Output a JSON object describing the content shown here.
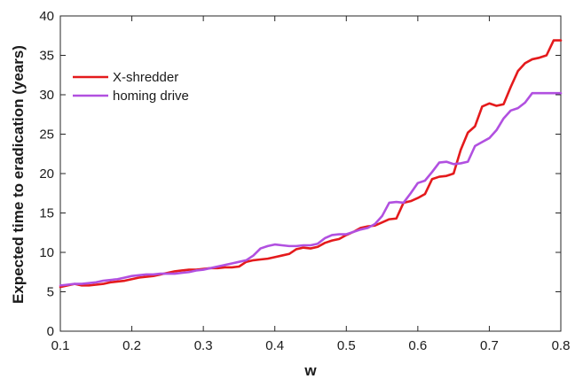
{
  "chart_data": {
    "type": "line",
    "title": "",
    "xlabel": "w",
    "ylabel": "Expected time to eradication (years)",
    "xlim": [
      0.1,
      0.8
    ],
    "ylim": [
      0,
      40
    ],
    "xticks": [
      0.1,
      0.2,
      0.3,
      0.4,
      0.5,
      0.6,
      0.7,
      0.8
    ],
    "yticks": [
      0,
      5,
      10,
      15,
      20,
      25,
      30,
      35,
      40
    ],
    "xtick_labels": [
      "0.1",
      "0.2",
      "0.3",
      "0.4",
      "0.5",
      "0.6",
      "0.7",
      "0.8"
    ],
    "ytick_labels": [
      "0",
      "5",
      "10",
      "15",
      "20",
      "25",
      "30",
      "35",
      "40"
    ],
    "grid": false,
    "legend_position": "top-left",
    "series": [
      {
        "name": "X-shredder",
        "color": "#e41a1c",
        "x": [
          0.1,
          0.11,
          0.12,
          0.13,
          0.14,
          0.15,
          0.16,
          0.17,
          0.18,
          0.19,
          0.2,
          0.21,
          0.22,
          0.23,
          0.24,
          0.25,
          0.26,
          0.27,
          0.28,
          0.29,
          0.3,
          0.31,
          0.32,
          0.33,
          0.34,
          0.35,
          0.36,
          0.37,
          0.38,
          0.39,
          0.4,
          0.41,
          0.42,
          0.43,
          0.44,
          0.45,
          0.46,
          0.47,
          0.48,
          0.49,
          0.5,
          0.51,
          0.52,
          0.53,
          0.54,
          0.55,
          0.56,
          0.57,
          0.58,
          0.59,
          0.6,
          0.61,
          0.62,
          0.63,
          0.64,
          0.65,
          0.66,
          0.67,
          0.68,
          0.69,
          0.7,
          0.71,
          0.72,
          0.73,
          0.74,
          0.75,
          0.76,
          0.77,
          0.78,
          0.79,
          0.8
        ],
        "y": [
          5.6,
          5.8,
          6.0,
          5.8,
          5.8,
          5.9,
          6.0,
          6.2,
          6.3,
          6.4,
          6.6,
          6.8,
          6.9,
          7.0,
          7.2,
          7.4,
          7.6,
          7.7,
          7.8,
          7.8,
          7.9,
          8.0,
          8.0,
          8.1,
          8.1,
          8.2,
          8.8,
          9.0,
          9.1,
          9.2,
          9.4,
          9.6,
          9.8,
          10.4,
          10.6,
          10.5,
          10.7,
          11.2,
          11.5,
          11.7,
          12.2,
          12.6,
          13.1,
          13.3,
          13.4,
          13.8,
          14.2,
          14.3,
          16.3,
          16.5,
          16.9,
          17.4,
          19.3,
          19.6,
          19.7,
          20.0,
          23.0,
          25.2,
          26.0,
          28.5,
          28.9,
          28.6,
          28.8,
          31.0,
          33.0,
          34.0,
          34.5,
          34.7,
          35.0,
          36.9,
          36.9
        ]
      },
      {
        "name": "homing drive",
        "color": "#b150e0",
        "x": [
          0.1,
          0.11,
          0.12,
          0.13,
          0.14,
          0.15,
          0.16,
          0.17,
          0.18,
          0.19,
          0.2,
          0.21,
          0.22,
          0.23,
          0.24,
          0.25,
          0.26,
          0.27,
          0.28,
          0.29,
          0.3,
          0.31,
          0.32,
          0.33,
          0.34,
          0.35,
          0.36,
          0.37,
          0.38,
          0.39,
          0.4,
          0.41,
          0.42,
          0.43,
          0.44,
          0.45,
          0.46,
          0.47,
          0.48,
          0.49,
          0.5,
          0.51,
          0.52,
          0.53,
          0.54,
          0.55,
          0.56,
          0.57,
          0.58,
          0.59,
          0.6,
          0.61,
          0.62,
          0.63,
          0.64,
          0.65,
          0.66,
          0.67,
          0.68,
          0.69,
          0.7,
          0.71,
          0.72,
          0.73,
          0.74,
          0.75,
          0.76,
          0.77,
          0.78,
          0.79,
          0.8
        ],
        "y": [
          5.8,
          5.9,
          6.0,
          6.0,
          6.1,
          6.2,
          6.4,
          6.5,
          6.6,
          6.8,
          7.0,
          7.1,
          7.2,
          7.2,
          7.3,
          7.3,
          7.3,
          7.4,
          7.5,
          7.7,
          7.8,
          8.0,
          8.2,
          8.4,
          8.6,
          8.8,
          9.0,
          9.6,
          10.5,
          10.8,
          11.0,
          10.9,
          10.8,
          10.8,
          10.9,
          10.9,
          11.1,
          11.8,
          12.2,
          12.3,
          12.3,
          12.6,
          12.9,
          13.1,
          13.6,
          14.6,
          16.3,
          16.4,
          16.3,
          17.5,
          18.8,
          19.1,
          20.2,
          21.4,
          21.5,
          21.2,
          21.3,
          21.5,
          23.5,
          24.0,
          24.5,
          25.5,
          27.0,
          28.0,
          28.3,
          29.0,
          30.2,
          30.2,
          30.2,
          30.2,
          30.2
        ]
      }
    ]
  }
}
